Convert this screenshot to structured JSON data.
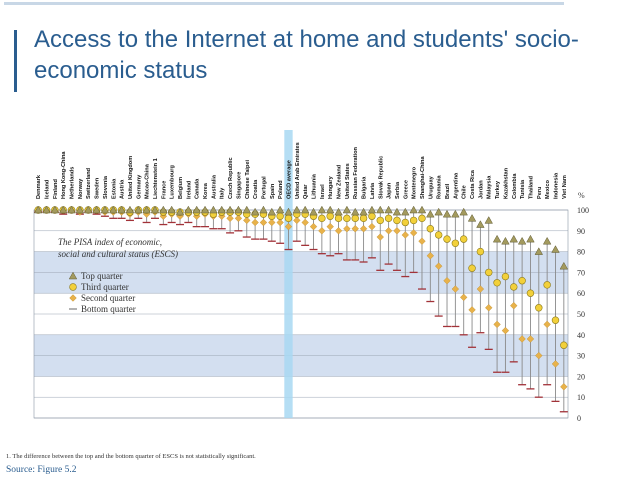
{
  "title": "Access to the Internet at home and students' socio-economic status",
  "footnote": "1. The difference between the top and the bottom quarter of ESCS is not statistically significant.",
  "source": "Source: Figure 5.2",
  "colors": {
    "band": "#d3dff0",
    "title": "#2a5d8f",
    "oecd_highlight": "#a8d8f2",
    "top_quarter": "#a39a5e",
    "third_quarter": "#f2d03a",
    "second_quarter": "#e8b24a",
    "bottom_quarter": "#a23238"
  },
  "chart_data": {
    "type": "scatter",
    "title": "",
    "xlabel": "",
    "ylabel": "%",
    "ylim": [
      0,
      100
    ],
    "yticks": [
      0,
      10,
      20,
      30,
      40,
      50,
      60,
      70,
      80,
      90,
      100
    ],
    "grid": true,
    "legend": {
      "title": "The PISA index of economic, social and cultural status (ESCS)",
      "position": "left",
      "entries": [
        "Top quarter",
        "Third quarter",
        "Second quarter",
        "Bottom quarter"
      ]
    },
    "highlight": "OECD average",
    "categories": [
      "Denmark",
      "Iceland",
      "Finland",
      "Hong Kong-China",
      "Netherlands",
      "Norway",
      "Switzerland",
      "Sweden",
      "Slovenia",
      "Estonia",
      "Austria",
      "United Kingdom",
      "Germany",
      "Macao-China",
      "Liechtenstein 1",
      "France",
      "Luxembourg",
      "Belgium",
      "Ireland",
      "Canada",
      "Korea",
      "Australia",
      "Italy",
      "Czech Republic",
      "Singapore",
      "Chinese Taipei",
      "Croatia",
      "Portugal",
      "Spain",
      "Poland",
      "OECD average",
      "United Arab Emirates",
      "Qatar",
      "Lithuania",
      "Israel",
      "Hungary",
      "New Zealand",
      "United States",
      "Russian Federation",
      "Bulgaria",
      "Latvia",
      "Slovak Republic",
      "Japan",
      "Serbia",
      "Greece",
      "Montenegro",
      "Shanghai-China",
      "Uruguay",
      "Romania",
      "Brazil",
      "Argentina",
      "Chile",
      "Costa Rica",
      "Jordan",
      "Malaysia",
      "Turkey",
      "Kazakhstan",
      "Colombia",
      "Tunisia",
      "Thailand",
      "Peru",
      "Mexico",
      "Indonesia",
      "Viet Nam"
    ],
    "series": [
      {
        "name": "Top quarter",
        "marker": "triangle",
        "values": [
          100,
          100,
          100,
          100,
          100,
          100,
          100,
          100,
          100,
          100,
          100,
          100,
          100,
          100,
          100,
          100,
          100,
          99,
          100,
          100,
          100,
          100,
          100,
          100,
          100,
          100,
          99,
          100,
          99,
          100,
          99,
          100,
          100,
          99,
          100,
          100,
          99,
          100,
          99,
          99,
          100,
          100,
          100,
          99,
          99,
          100,
          100,
          98,
          99,
          98,
          98,
          99,
          96,
          93,
          95,
          86,
          85,
          86,
          85,
          86,
          80,
          85,
          81,
          73
        ]
      },
      {
        "name": "Third quarter",
        "marker": "circle",
        "values": [
          100,
          100,
          100,
          100,
          100,
          100,
          100,
          100,
          100,
          100,
          100,
          99,
          100,
          100,
          100,
          99,
          99,
          99,
          99,
          99,
          99,
          98,
          99,
          99,
          99,
          98,
          98,
          98,
          97,
          97,
          96,
          98,
          98,
          97,
          96,
          97,
          96,
          96,
          96,
          96,
          97,
          95,
          96,
          95,
          94,
          95,
          96,
          91,
          88,
          86,
          84,
          86,
          72,
          80,
          70,
          65,
          68,
          63,
          66,
          60,
          53,
          64,
          47,
          35
        ]
      },
      {
        "name": "Second quarter",
        "marker": "diamond",
        "values": [
          100,
          100,
          100,
          100,
          100,
          99,
          100,
          100,
          99,
          99,
          99,
          98,
          99,
          98,
          99,
          97,
          98,
          97,
          98,
          97,
          98,
          97,
          97,
          96,
          96,
          95,
          94,
          94,
          94,
          94,
          92,
          95,
          94,
          92,
          90,
          92,
          90,
          91,
          91,
          91,
          92,
          87,
          90,
          90,
          88,
          89,
          85,
          78,
          73,
          66,
          62,
          58,
          52,
          62,
          53,
          45,
          42,
          54,
          38,
          38,
          30,
          45,
          26,
          15
        ]
      },
      {
        "name": "Bottom quarter",
        "marker": "dash",
        "values": [
          99,
          99,
          99,
          98,
          99,
          98,
          99,
          98,
          97,
          96,
          96,
          95,
          96,
          94,
          96,
          93,
          94,
          93,
          94,
          92,
          92,
          91,
          91,
          89,
          90,
          87,
          86,
          86,
          85,
          84,
          81,
          85,
          83,
          81,
          79,
          78,
          79,
          76,
          76,
          75,
          77,
          71,
          74,
          71,
          68,
          70,
          62,
          56,
          49,
          44,
          44,
          40,
          34,
          41,
          33,
          22,
          22,
          27,
          16,
          14,
          10,
          16,
          8,
          3
        ]
      }
    ]
  }
}
